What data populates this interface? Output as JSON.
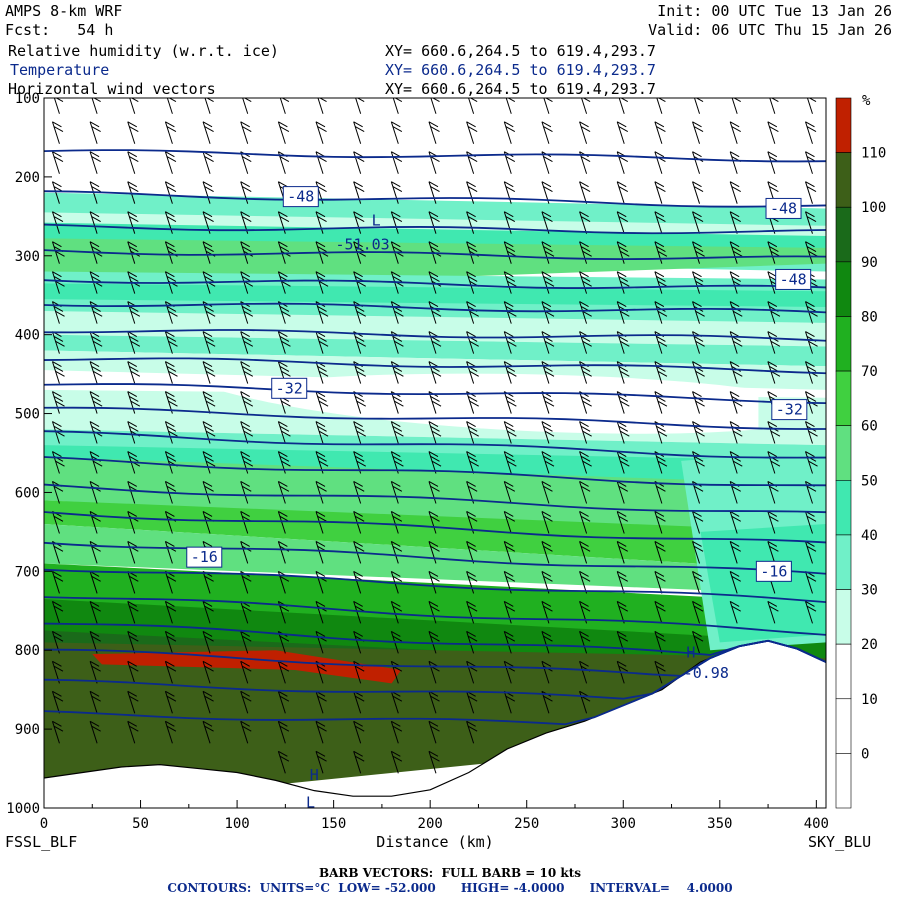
{
  "header": {
    "model": "AMPS 8-km WRF",
    "fcst": "Fcst:   54 h",
    "init": "Init: 00 UTC Tue 13 Jan 26",
    "valid": "Valid: 06 UTC Thu 15 Jan 26",
    "fields": [
      {
        "name": "Relative humidity (w.r.t. ice)",
        "xy": "XY= 660.6,264.5 to 619.4,293.7",
        "color": "#000000"
      },
      {
        "name": "Temperature",
        "xy": "XY= 660.6,264.5 to 619.4,293.7",
        "color": "#0b2a8c"
      },
      {
        "name": "Horizontal wind vectors",
        "xy": "XY= 660.6,264.5 to 619.4,293.7",
        "color": "#000000"
      }
    ]
  },
  "footer": {
    "barb": "BARB VECTORS:  FULL BARB = 10 kts",
    "contours": "CONTOURS:  UNITS=°C  LOW= -52.000      HIGH= -4.0000      INTERVAL=    4.0000"
  },
  "chart_data": {
    "type": "heatmap",
    "xlabel": "Distance (km)",
    "left_endpoint": "FSSL_BLF",
    "right_endpoint": "SKY_BLU",
    "xlim": [
      0,
      405
    ],
    "ylim": [
      1000,
      100
    ],
    "x_ticks": [
      "0",
      "50",
      "100",
      "150",
      "200",
      "250",
      "300",
      "350",
      "400"
    ],
    "y_ticks": [
      "100",
      "200",
      "300",
      "400",
      "500",
      "600",
      "700",
      "800",
      "900",
      "1000"
    ],
    "colorbar": {
      "unit": "%",
      "levels": [
        "0",
        "10",
        "20",
        "30",
        "40",
        "50",
        "60",
        "70",
        "80",
        "90",
        "100",
        "110"
      ],
      "colors": [
        "#ffffff",
        "#ffffff",
        "#ffffff",
        "#c8fde8",
        "#70f0c8",
        "#40e8b0",
        "#60e080",
        "#40d040",
        "#20b020",
        "#108810",
        "#1a6a1a",
        "#3d5f18",
        "#c02000"
      ]
    },
    "temperature_labels": [
      {
        "text": "-48",
        "x_km": 133,
        "p": 225
      },
      {
        "text": "-48",
        "x_km": 383,
        "p": 240
      },
      {
        "text": "-48",
        "x_km": 388,
        "p": 330
      },
      {
        "text": "-51.03",
        "x_km": 165,
        "p": 286
      },
      {
        "text": "-32",
        "x_km": 127,
        "p": 468
      },
      {
        "text": "-32",
        "x_km": 386,
        "p": 495
      },
      {
        "text": "-16",
        "x_km": 83,
        "p": 682
      },
      {
        "text": "-16",
        "x_km": 378,
        "p": 700
      },
      {
        "text": "-0.98",
        "x_km": 343,
        "p": 829
      }
    ],
    "temperature_contours_p_at_edges": [
      [
        168,
        178
      ],
      [
        221,
        237
      ],
      [
        263,
        270
      ],
      [
        294,
        304
      ],
      [
        330,
        342
      ],
      [
        360,
        372
      ],
      [
        394,
        406
      ],
      [
        430,
        446
      ],
      [
        463,
        484
      ],
      [
        494,
        518
      ],
      [
        525,
        556
      ],
      [
        558,
        593
      ],
      [
        592,
        628
      ],
      [
        625,
        666
      ],
      [
        662,
        704
      ],
      [
        695,
        738
      ],
      [
        730,
        778
      ],
      [
        765,
        813
      ],
      [
        800,
        840
      ],
      [
        840,
        868
      ],
      [
        880,
        900
      ]
    ],
    "markers": [
      {
        "text": "H",
        "x_km": 140,
        "p": 958
      },
      {
        "text": "L",
        "x_km": 138,
        "p": 993
      },
      {
        "text": "H",
        "x_km": 335,
        "p": 803
      },
      {
        "text": "L",
        "x_km": 172,
        "p": 255
      }
    ],
    "terrain_p": [
      [
        0,
        962
      ],
      [
        20,
        955
      ],
      [
        40,
        948
      ],
      [
        60,
        945
      ],
      [
        80,
        950
      ],
      [
        100,
        955
      ],
      [
        120,
        965
      ],
      [
        140,
        978
      ],
      [
        160,
        985
      ],
      [
        180,
        985
      ],
      [
        200,
        977
      ],
      [
        220,
        955
      ],
      [
        240,
        925
      ],
      [
        260,
        905
      ],
      [
        280,
        890
      ],
      [
        300,
        870
      ],
      [
        320,
        850
      ],
      [
        340,
        815
      ],
      [
        360,
        795
      ],
      [
        375,
        788
      ],
      [
        390,
        798
      ],
      [
        405,
        815
      ]
    ],
    "grid": false
  }
}
